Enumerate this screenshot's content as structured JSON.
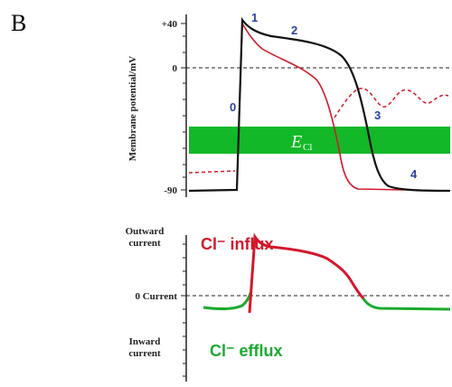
{
  "panel_label": "B",
  "top": {
    "ylabel": "Membrane potential/mV",
    "ticks": [
      "+40",
      "0",
      "-90"
    ],
    "phases": [
      "0",
      "1",
      "2",
      "3",
      "4"
    ],
    "ecl_label": "E",
    "ecl_sub": "Cl",
    "colors": {
      "black_trace": "#111111",
      "red_trace": "#d4182b",
      "band": "#12b828",
      "phase_text": "#2b3fa8"
    }
  },
  "bottom": {
    "outward": [
      "Outward",
      "current"
    ],
    "zero": "0 Current",
    "inward": [
      "Inward",
      "current"
    ],
    "influx": "Cl⁻ influx",
    "efflux": "Cl⁻ efflux",
    "colors": {
      "influx": "#d4182b",
      "efflux": "#1aaa2f"
    }
  }
}
